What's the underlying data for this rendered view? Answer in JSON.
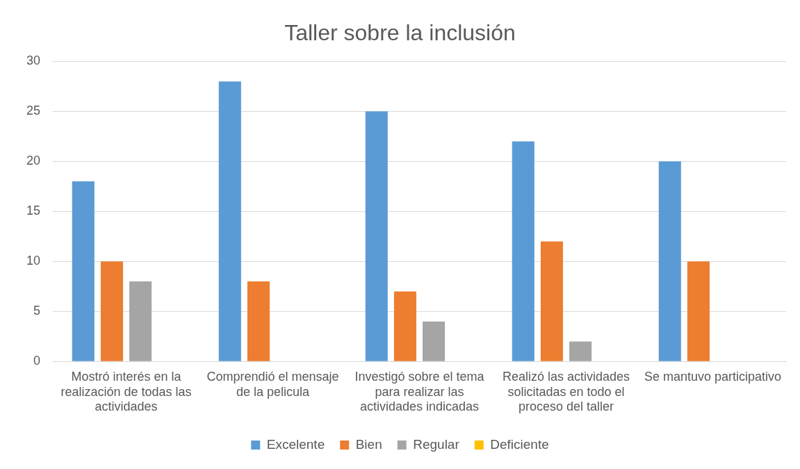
{
  "chart_data": {
    "type": "bar",
    "title": "Taller sobre la inclusión",
    "categories": [
      "Mostró interés en la realización de todas las actividades",
      "Comprendió el mensaje de la pelicula",
      "Investigó sobre el tema para realizar las actividades indicadas",
      "Realizó las actividades solicitadas en todo el proceso del taller",
      "Se mantuvo participativo"
    ],
    "series": [
      {
        "name": "Excelente",
        "color": "#5b9bd5",
        "values": [
          18,
          28,
          25,
          22,
          20
        ]
      },
      {
        "name": "Bien",
        "color": "#ed7d31",
        "values": [
          10,
          8,
          7,
          12,
          10
        ]
      },
      {
        "name": "Regular",
        "color": "#a5a5a5",
        "values": [
          8,
          0,
          4,
          2,
          0
        ]
      },
      {
        "name": "Deficiente",
        "color": "#ffc000",
        "values": [
          0,
          0,
          0,
          0,
          0
        ]
      }
    ],
    "ylim": [
      0,
      30
    ],
    "yticks": [
      0,
      5,
      10,
      15,
      20,
      25,
      30
    ],
    "grid": "y",
    "legend": "bottom"
  }
}
